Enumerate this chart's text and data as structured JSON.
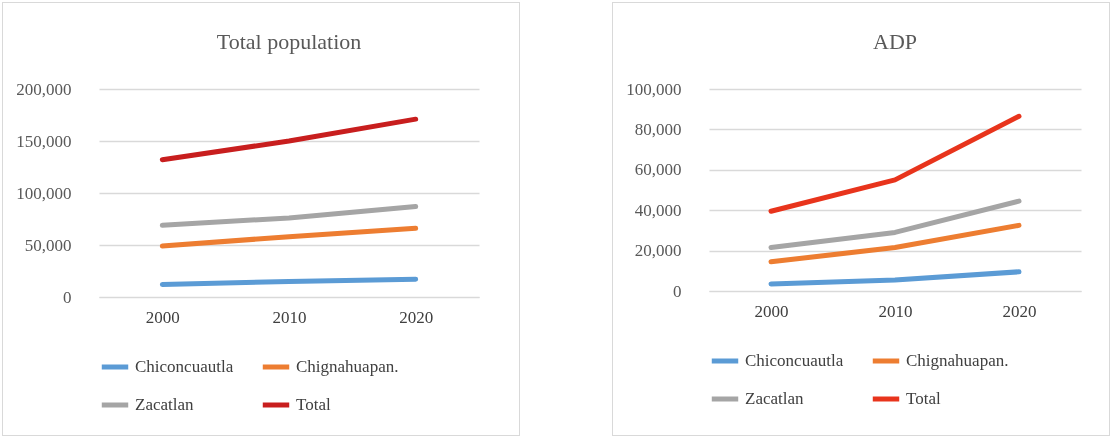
{
  "chart_data": [
    {
      "type": "line",
      "title": "Total population",
      "categories": [
        "2000",
        "2010",
        "2020"
      ],
      "series": [
        {
          "name": "Chiconcuautla",
          "color": "#5b9bd5",
          "values": [
            12000,
            15000,
            17000
          ]
        },
        {
          "name": "Chignahuapan.",
          "color": "#ed7d31",
          "values": [
            49000,
            58000,
            66000
          ]
        },
        {
          "name": "Zacatlan",
          "color": "#a5a5a5",
          "values": [
            69000,
            76000,
            87000
          ]
        },
        {
          "name": "Total",
          "color": "#c81e1e",
          "values": [
            132000,
            150000,
            171000
          ]
        }
      ],
      "ylim": [
        0,
        200000
      ],
      "yticks": [
        0,
        {
          "value": 50000,
          "label": "50,000"
        },
        {
          "value": 100000,
          "label": "100,000"
        },
        {
          "value": 150000,
          "label": "150,000"
        },
        {
          "value": 200000,
          "label": "200,000"
        }
      ],
      "grid": "y",
      "legend": "bottom"
    },
    {
      "type": "line",
      "title": "ADP",
      "categories": [
        "2000",
        "2010",
        "2020"
      ],
      "series": [
        {
          "name": "Chiconcuautla",
          "color": "#5b9bd5",
          "values": [
            3500,
            5500,
            9500
          ]
        },
        {
          "name": "Chignahuapan.",
          "color": "#ed7d31",
          "values": [
            14500,
            21500,
            32500
          ]
        },
        {
          "name": "Zacatlan",
          "color": "#a5a5a5",
          "values": [
            21500,
            29000,
            44500
          ]
        },
        {
          "name": "Total",
          "color": "#e8341c",
          "values": [
            39500,
            55000,
            86500
          ]
        }
      ],
      "ylim": [
        0,
        100000
      ],
      "yticks": [
        0,
        {
          "value": 20000,
          "label": "20,000"
        },
        {
          "value": 40000,
          "label": "40,000"
        },
        {
          "value": 60000,
          "label": "60,000"
        },
        {
          "value": 80000,
          "label": "80,000"
        },
        {
          "value": 100000,
          "label": "100,000"
        }
      ],
      "grid": "y",
      "legend": "bottom"
    }
  ]
}
